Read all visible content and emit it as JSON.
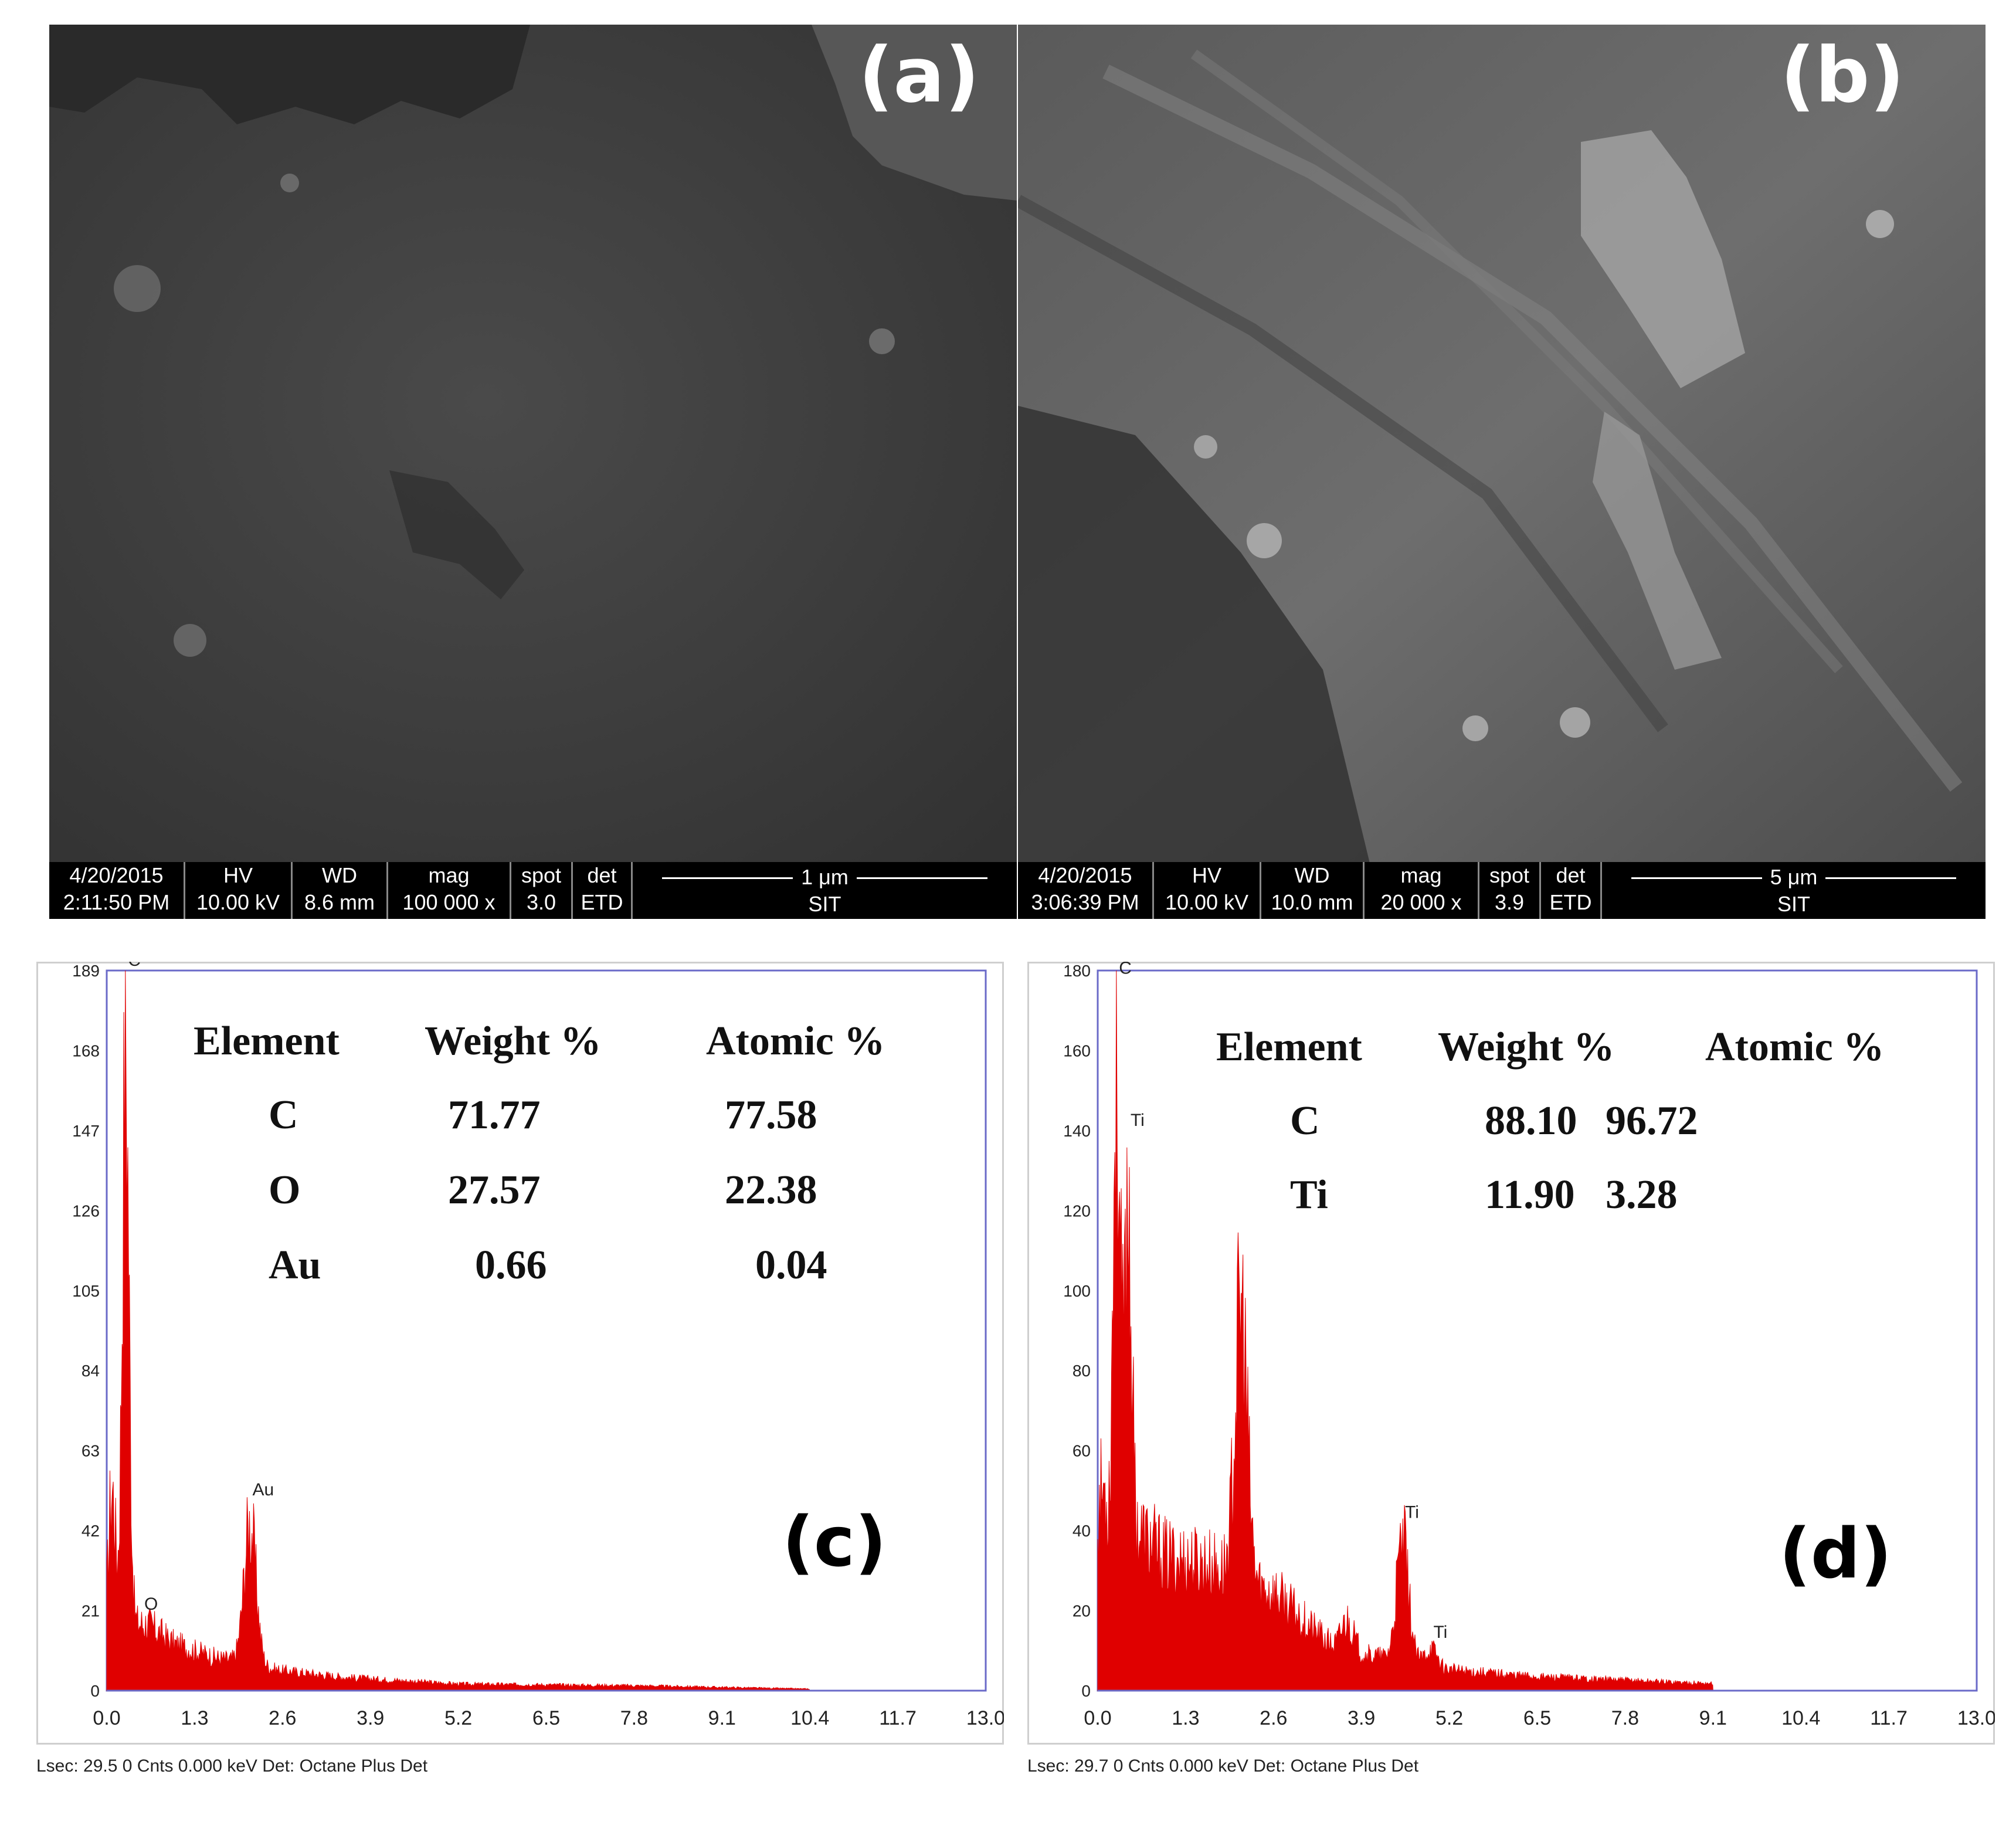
{
  "panels": {
    "a": {
      "letter": "(a)",
      "bar": {
        "date": "4/20/2015",
        "time": "2:11:50 PM",
        "hv_label": "HV",
        "hv": "10.00 kV",
        "wd_label": "WD",
        "wd": "8.6 mm",
        "mag_label": "mag",
        "mag": "100 000 x",
        "spot_label": "spot",
        "spot": "3.0",
        "det_label": "det",
        "det": "ETD",
        "scale": "1 μm",
        "org": "SIT"
      }
    },
    "b": {
      "letter": "(b)",
      "bar": {
        "date": "4/20/2015",
        "time": "3:06:39 PM",
        "hv_label": "HV",
        "hv": "10.00 kV",
        "wd_label": "WD",
        "wd": "10.0 mm",
        "mag_label": "mag",
        "mag": "20 000 x",
        "spot_label": "spot",
        "spot": "3.9",
        "det_label": "det",
        "det": "ETD",
        "scale": "5 μm",
        "org": "SIT"
      }
    },
    "c": {
      "letter": "(c)",
      "table": {
        "headers": [
          "Element",
          "Weight %",
          "Atomic %"
        ],
        "rows": [
          [
            "C",
            "71.77",
            "77.58"
          ],
          [
            "O",
            "27.57",
            "22.38"
          ],
          [
            "Au",
            "0.66",
            "0.04"
          ]
        ]
      },
      "footer": "Lsec: 29.5 0 Cnts  0.000 keV Det: Octane Plus Det"
    },
    "d": {
      "letter": "(d)",
      "table": {
        "headers": [
          "Element",
          "Weight %",
          "Atomic %"
        ],
        "rows": [
          [
            "C",
            "88.10",
            "96.72"
          ],
          [
            "Ti",
            "11.90",
            "3.28"
          ]
        ]
      },
      "footer": "Lsec: 29.7 0 Cnts  0.000 keV Det: Octane Plus Det"
    }
  },
  "chart_data": [
    {
      "type": "area",
      "panel": "c",
      "spectrum_color": "#e00000",
      "xlim": [
        0,
        13.0
      ],
      "ylim": [
        0,
        189
      ],
      "x_ticks": [
        "0.0",
        "1.3",
        "2.6",
        "3.9",
        "5.2",
        "6.5",
        "7.8",
        "9.1",
        "10.4",
        "11.7",
        "13.0"
      ],
      "y_ticks": [
        "0",
        "21",
        "42",
        "63",
        "84",
        "105",
        "126",
        "147",
        "168",
        "189"
      ],
      "peaks": [
        {
          "x": 0.08,
          "y": 60,
          "label": ""
        },
        {
          "x": 0.28,
          "y": 189,
          "label": "C"
        },
        {
          "x": 0.52,
          "y": 20,
          "label": "O"
        },
        {
          "x": 2.12,
          "y": 50,
          "label": "Au"
        }
      ],
      "background": [
        [
          0.6,
          20
        ],
        [
          1.0,
          14
        ],
        [
          1.6,
          10
        ],
        [
          2.6,
          6
        ],
        [
          3.5,
          4
        ],
        [
          5.2,
          2
        ],
        [
          7.8,
          1.5
        ],
        [
          10.4,
          0.5
        ]
      ]
    },
    {
      "type": "area",
      "panel": "d",
      "spectrum_color": "#e00000",
      "xlim": [
        0,
        13.0
      ],
      "ylim": [
        0,
        180
      ],
      "x_ticks": [
        "0.0",
        "1.3",
        "2.6",
        "3.9",
        "5.2",
        "6.5",
        "7.8",
        "9.1",
        "10.4",
        "11.7",
        "13.0"
      ],
      "y_ticks": [
        "0",
        "20",
        "40",
        "60",
        "80",
        "100",
        "120",
        "140",
        "160",
        "180"
      ],
      "peaks": [
        {
          "x": 0.08,
          "y": 58,
          "label": ""
        },
        {
          "x": 0.28,
          "y": 178,
          "label": "C"
        },
        {
          "x": 0.45,
          "y": 140,
          "label": "Ti"
        },
        {
          "x": 2.12,
          "y": 108,
          "label": ""
        },
        {
          "x": 3.69,
          "y": 20,
          "label": ""
        },
        {
          "x": 4.51,
          "y": 42,
          "label": "Ti"
        },
        {
          "x": 4.93,
          "y": 12,
          "label": "Ti"
        }
      ],
      "background": [
        [
          0.6,
          45
        ],
        [
          1.0,
          38
        ],
        [
          1.6,
          36
        ],
        [
          2.6,
          28
        ],
        [
          3.5,
          12
        ],
        [
          5.2,
          6
        ],
        [
          6.5,
          4
        ],
        [
          7.8,
          3
        ],
        [
          9.1,
          2
        ]
      ]
    }
  ]
}
